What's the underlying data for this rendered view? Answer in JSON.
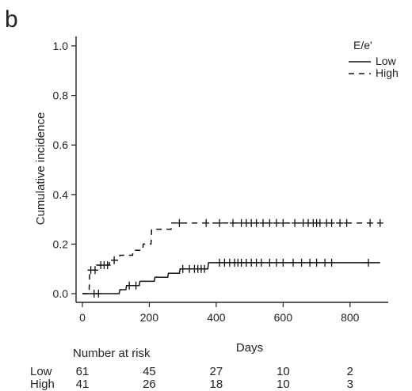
{
  "panel_label": "b",
  "chart_data": {
    "type": "line",
    "title": "",
    "xlabel": "Days",
    "ylabel": "Cumulative incidence",
    "xlim": [
      0,
      900
    ],
    "ylim": [
      0,
      1.0
    ],
    "x_ticks": [
      0,
      200,
      400,
      600,
      800
    ],
    "y_ticks": [
      0.0,
      0.2,
      0.4,
      0.6,
      0.8,
      1.0
    ],
    "x_tick_labels": [
      "0",
      "200",
      "400",
      "600",
      "800"
    ],
    "y_tick_labels": [
      "0.0",
      "0.2",
      "0.4",
      "0.6",
      "0.8",
      "1.0"
    ],
    "grid": false,
    "legend": {
      "title": "E/e'",
      "placement": "top-right"
    },
    "series": [
      {
        "name": "Low",
        "line_style": "solid",
        "steps": [
          [
            0,
            0.0
          ],
          [
            45,
            0.0
          ],
          [
            110,
            0.0
          ],
          [
            112,
            0.016
          ],
          [
            130,
            0.016
          ],
          [
            132,
            0.033
          ],
          [
            170,
            0.033
          ],
          [
            172,
            0.05
          ],
          [
            215,
            0.05
          ],
          [
            217,
            0.066
          ],
          [
            255,
            0.066
          ],
          [
            257,
            0.082
          ],
          [
            290,
            0.082
          ],
          [
            292,
            0.1
          ],
          [
            375,
            0.1
          ],
          [
            377,
            0.125
          ],
          [
            890,
            0.125
          ]
        ],
        "censor_times": [
          35,
          48,
          140,
          160,
          300,
          320,
          335,
          345,
          355,
          365,
          410,
          425,
          440,
          455,
          465,
          475,
          490,
          505,
          520,
          535,
          560,
          580,
          600,
          630,
          655,
          680,
          700,
          725,
          745,
          855
        ]
      },
      {
        "name": "High",
        "line_style": "dashed",
        "steps": [
          [
            0,
            0.0
          ],
          [
            20,
            0.0
          ],
          [
            22,
            0.095
          ],
          [
            40,
            0.095
          ],
          [
            42,
            0.115
          ],
          [
            80,
            0.115
          ],
          [
            82,
            0.135
          ],
          [
            110,
            0.135
          ],
          [
            112,
            0.155
          ],
          [
            150,
            0.155
          ],
          [
            152,
            0.175
          ],
          [
            180,
            0.175
          ],
          [
            182,
            0.2
          ],
          [
            205,
            0.2
          ],
          [
            207,
            0.26
          ],
          [
            265,
            0.26
          ],
          [
            267,
            0.285
          ],
          [
            890,
            0.285
          ]
        ],
        "censor_times": [
          25,
          38,
          55,
          65,
          75,
          95,
          290,
          370,
          410,
          450,
          475,
          490,
          505,
          520,
          540,
          560,
          580,
          600,
          635,
          660,
          675,
          690,
          700,
          710,
          730,
          745,
          770,
          790,
          860,
          890
        ]
      }
    ],
    "risk_table": {
      "title": "Number at risk",
      "times": [
        0,
        200,
        400,
        600,
        800
      ],
      "rows": [
        {
          "label": "Low",
          "values": [
            "61",
            "45",
            "27",
            "10",
            "2"
          ]
        },
        {
          "label": "High",
          "values": [
            "41",
            "26",
            "18",
            "10",
            "3"
          ]
        }
      ]
    }
  }
}
